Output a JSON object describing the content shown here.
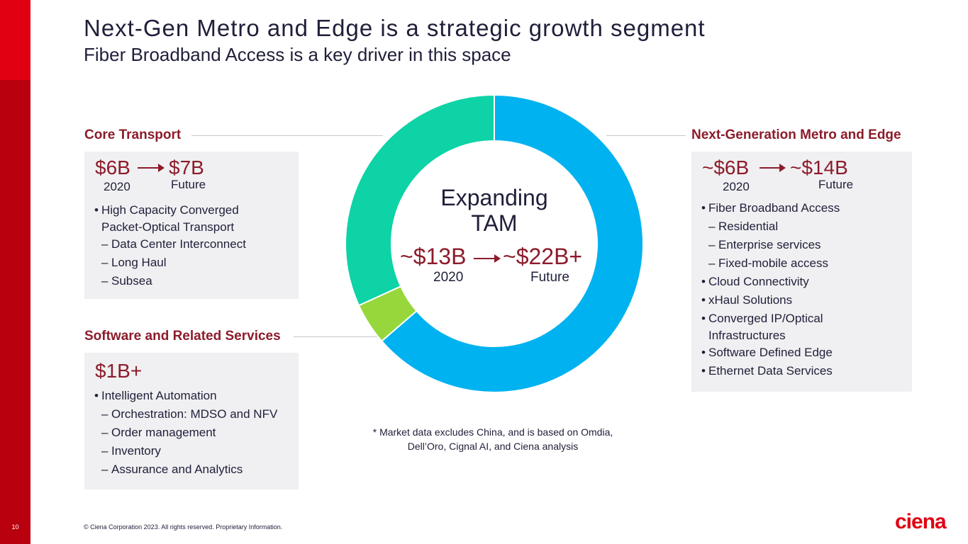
{
  "slide": {
    "title": "Next-Gen Metro and Edge is a strategic growth segment",
    "subtitle": "Fiber Broadband Access is a key driver in this space",
    "page_number": "10",
    "copyright": "© Ciena Corporation 2023. All rights reserved. Proprietary Information.",
    "logo": "ciena"
  },
  "colors": {
    "brand_red": "#e00012",
    "dark_red": "#b8000f",
    "heading_red": "#8c1c2b",
    "blue": "#00b2ef",
    "green": "#0dd3a6",
    "lime": "#97d73b",
    "box_bg": "#f0f0f2"
  },
  "core": {
    "heading": "Core Transport",
    "from_value": "$6B",
    "from_label": "2020",
    "to_value": "$7B",
    "to_label": "Future",
    "bullets": [
      {
        "type": "b",
        "text": "High Capacity Converged"
      },
      {
        "type": "c",
        "text": "Packet-Optical Transport"
      },
      {
        "type": "d",
        "text": "Data Center Interconnect"
      },
      {
        "type": "d",
        "text": "Long Haul"
      },
      {
        "type": "d",
        "text": "Subsea"
      }
    ]
  },
  "software": {
    "heading": "Software and Related Services",
    "value": "$1B+",
    "bullets": [
      {
        "type": "b",
        "text": "Intelligent Automation"
      },
      {
        "type": "d",
        "text": "Orchestration: MDSO and NFV"
      },
      {
        "type": "d",
        "text": "Order management"
      },
      {
        "type": "d",
        "text": "Inventory"
      },
      {
        "type": "d",
        "text": "Assurance and Analytics"
      }
    ]
  },
  "metro": {
    "heading": "Next-Generation Metro and Edge",
    "from_value": "~$6B",
    "from_label": "2020",
    "to_value": "~$14B",
    "to_label": "Future",
    "bullets": [
      {
        "type": "b",
        "text": "Fiber Broadband Access"
      },
      {
        "type": "d",
        "text": "Residential"
      },
      {
        "type": "d",
        "text": "Enterprise services"
      },
      {
        "type": "d",
        "text": "Fixed-mobile access"
      },
      {
        "type": "b",
        "text": "Cloud Connectivity"
      },
      {
        "type": "b",
        "text": "xHaul Solutions"
      },
      {
        "type": "b",
        "text": "Converged IP/Optical"
      },
      {
        "type": "c",
        "text": "Infrastructures"
      },
      {
        "type": "b",
        "text": "Software Defined Edge"
      },
      {
        "type": "b",
        "text": "Ethernet Data Services"
      }
    ]
  },
  "center": {
    "line1": "Expanding",
    "line2": "TAM",
    "from_value": "~$13B",
    "from_label": "2020",
    "to_value": "~$22B+",
    "to_label": "Future"
  },
  "footnote": {
    "line1": "* Market data excludes China, and is based on Omdia,",
    "line2": "Dell’Oro, Cignal AI, and Ciena analysis"
  },
  "chart_data": {
    "type": "pie",
    "donut": true,
    "start": "top",
    "direction": "clockwise",
    "categories": [
      "Next-Generation Metro and Edge",
      "Software and Related Services",
      "Core Transport"
    ],
    "values": [
      14,
      1,
      7
    ],
    "colors": [
      "#00b2ef",
      "#97d73b",
      "#0dd3a6"
    ]
  }
}
